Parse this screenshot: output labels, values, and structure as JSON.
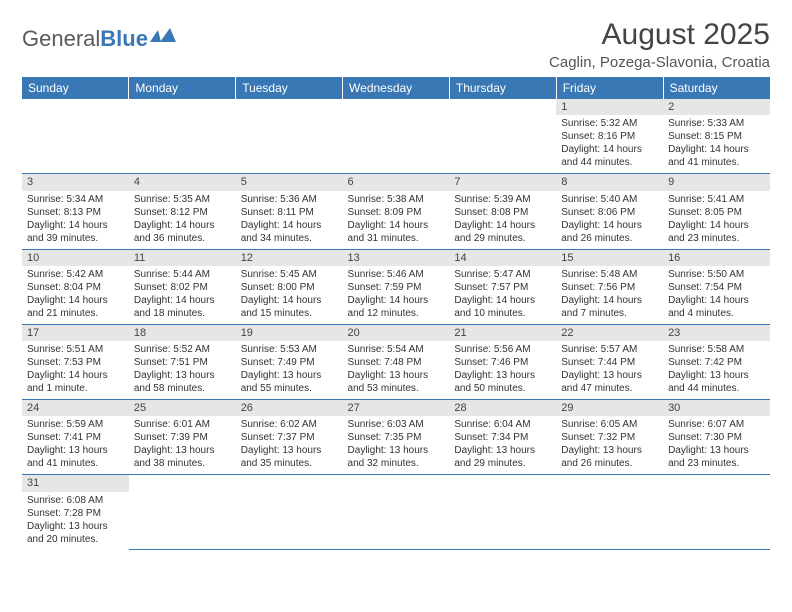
{
  "brand": {
    "textA": "General",
    "textB": "Blue"
  },
  "title": "August 2025",
  "location": "Caglin, Pozega-Slavonia, Croatia",
  "colors": {
    "header_bg": "#3a78b5",
    "daynum_bg": "#e6e6e6",
    "text": "#333333"
  },
  "weekdays": [
    "Sunday",
    "Monday",
    "Tuesday",
    "Wednesday",
    "Thursday",
    "Friday",
    "Saturday"
  ],
  "weeks": [
    [
      null,
      null,
      null,
      null,
      null,
      {
        "n": "1",
        "sr": "Sunrise: 5:32 AM",
        "ss": "Sunset: 8:16 PM",
        "d1": "Daylight: 14 hours",
        "d2": "and 44 minutes."
      },
      {
        "n": "2",
        "sr": "Sunrise: 5:33 AM",
        "ss": "Sunset: 8:15 PM",
        "d1": "Daylight: 14 hours",
        "d2": "and 41 minutes."
      }
    ],
    [
      {
        "n": "3",
        "sr": "Sunrise: 5:34 AM",
        "ss": "Sunset: 8:13 PM",
        "d1": "Daylight: 14 hours",
        "d2": "and 39 minutes."
      },
      {
        "n": "4",
        "sr": "Sunrise: 5:35 AM",
        "ss": "Sunset: 8:12 PM",
        "d1": "Daylight: 14 hours",
        "d2": "and 36 minutes."
      },
      {
        "n": "5",
        "sr": "Sunrise: 5:36 AM",
        "ss": "Sunset: 8:11 PM",
        "d1": "Daylight: 14 hours",
        "d2": "and 34 minutes."
      },
      {
        "n": "6",
        "sr": "Sunrise: 5:38 AM",
        "ss": "Sunset: 8:09 PM",
        "d1": "Daylight: 14 hours",
        "d2": "and 31 minutes."
      },
      {
        "n": "7",
        "sr": "Sunrise: 5:39 AM",
        "ss": "Sunset: 8:08 PM",
        "d1": "Daylight: 14 hours",
        "d2": "and 29 minutes."
      },
      {
        "n": "8",
        "sr": "Sunrise: 5:40 AM",
        "ss": "Sunset: 8:06 PM",
        "d1": "Daylight: 14 hours",
        "d2": "and 26 minutes."
      },
      {
        "n": "9",
        "sr": "Sunrise: 5:41 AM",
        "ss": "Sunset: 8:05 PM",
        "d1": "Daylight: 14 hours",
        "d2": "and 23 minutes."
      }
    ],
    [
      {
        "n": "10",
        "sr": "Sunrise: 5:42 AM",
        "ss": "Sunset: 8:04 PM",
        "d1": "Daylight: 14 hours",
        "d2": "and 21 minutes."
      },
      {
        "n": "11",
        "sr": "Sunrise: 5:44 AM",
        "ss": "Sunset: 8:02 PM",
        "d1": "Daylight: 14 hours",
        "d2": "and 18 minutes."
      },
      {
        "n": "12",
        "sr": "Sunrise: 5:45 AM",
        "ss": "Sunset: 8:00 PM",
        "d1": "Daylight: 14 hours",
        "d2": "and 15 minutes."
      },
      {
        "n": "13",
        "sr": "Sunrise: 5:46 AM",
        "ss": "Sunset: 7:59 PM",
        "d1": "Daylight: 14 hours",
        "d2": "and 12 minutes."
      },
      {
        "n": "14",
        "sr": "Sunrise: 5:47 AM",
        "ss": "Sunset: 7:57 PM",
        "d1": "Daylight: 14 hours",
        "d2": "and 10 minutes."
      },
      {
        "n": "15",
        "sr": "Sunrise: 5:48 AM",
        "ss": "Sunset: 7:56 PM",
        "d1": "Daylight: 14 hours",
        "d2": "and 7 minutes."
      },
      {
        "n": "16",
        "sr": "Sunrise: 5:50 AM",
        "ss": "Sunset: 7:54 PM",
        "d1": "Daylight: 14 hours",
        "d2": "and 4 minutes."
      }
    ],
    [
      {
        "n": "17",
        "sr": "Sunrise: 5:51 AM",
        "ss": "Sunset: 7:53 PM",
        "d1": "Daylight: 14 hours",
        "d2": "and 1 minute."
      },
      {
        "n": "18",
        "sr": "Sunrise: 5:52 AM",
        "ss": "Sunset: 7:51 PM",
        "d1": "Daylight: 13 hours",
        "d2": "and 58 minutes."
      },
      {
        "n": "19",
        "sr": "Sunrise: 5:53 AM",
        "ss": "Sunset: 7:49 PM",
        "d1": "Daylight: 13 hours",
        "d2": "and 55 minutes."
      },
      {
        "n": "20",
        "sr": "Sunrise: 5:54 AM",
        "ss": "Sunset: 7:48 PM",
        "d1": "Daylight: 13 hours",
        "d2": "and 53 minutes."
      },
      {
        "n": "21",
        "sr": "Sunrise: 5:56 AM",
        "ss": "Sunset: 7:46 PM",
        "d1": "Daylight: 13 hours",
        "d2": "and 50 minutes."
      },
      {
        "n": "22",
        "sr": "Sunrise: 5:57 AM",
        "ss": "Sunset: 7:44 PM",
        "d1": "Daylight: 13 hours",
        "d2": "and 47 minutes."
      },
      {
        "n": "23",
        "sr": "Sunrise: 5:58 AM",
        "ss": "Sunset: 7:42 PM",
        "d1": "Daylight: 13 hours",
        "d2": "and 44 minutes."
      }
    ],
    [
      {
        "n": "24",
        "sr": "Sunrise: 5:59 AM",
        "ss": "Sunset: 7:41 PM",
        "d1": "Daylight: 13 hours",
        "d2": "and 41 minutes."
      },
      {
        "n": "25",
        "sr": "Sunrise: 6:01 AM",
        "ss": "Sunset: 7:39 PM",
        "d1": "Daylight: 13 hours",
        "d2": "and 38 minutes."
      },
      {
        "n": "26",
        "sr": "Sunrise: 6:02 AM",
        "ss": "Sunset: 7:37 PM",
        "d1": "Daylight: 13 hours",
        "d2": "and 35 minutes."
      },
      {
        "n": "27",
        "sr": "Sunrise: 6:03 AM",
        "ss": "Sunset: 7:35 PM",
        "d1": "Daylight: 13 hours",
        "d2": "and 32 minutes."
      },
      {
        "n": "28",
        "sr": "Sunrise: 6:04 AM",
        "ss": "Sunset: 7:34 PM",
        "d1": "Daylight: 13 hours",
        "d2": "and 29 minutes."
      },
      {
        "n": "29",
        "sr": "Sunrise: 6:05 AM",
        "ss": "Sunset: 7:32 PM",
        "d1": "Daylight: 13 hours",
        "d2": "and 26 minutes."
      },
      {
        "n": "30",
        "sr": "Sunrise: 6:07 AM",
        "ss": "Sunset: 7:30 PM",
        "d1": "Daylight: 13 hours",
        "d2": "and 23 minutes."
      }
    ],
    [
      {
        "n": "31",
        "sr": "Sunrise: 6:08 AM",
        "ss": "Sunset: 7:28 PM",
        "d1": "Daylight: 13 hours",
        "d2": "and 20 minutes."
      },
      null,
      null,
      null,
      null,
      null,
      null
    ]
  ]
}
